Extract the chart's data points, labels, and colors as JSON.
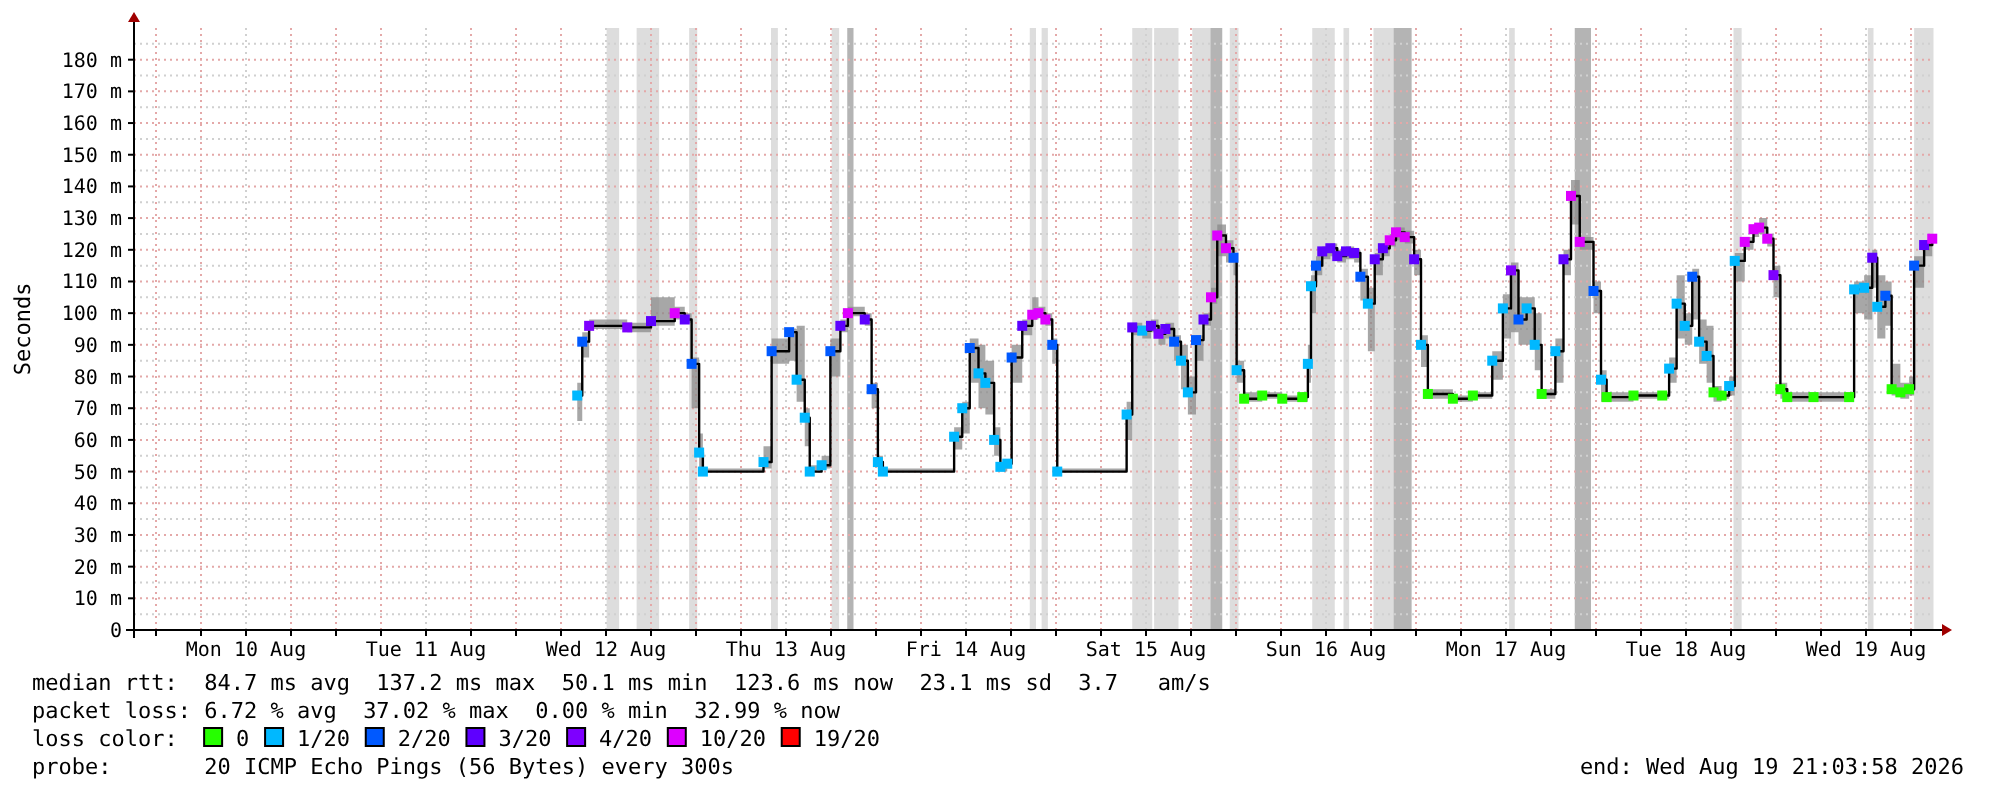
{
  "chart_data": {
    "type": "step",
    "ylabel": "Seconds",
    "legend_title": "loss color:",
    "legend": "bottom",
    "grid": true,
    "xlim": [
      "2026-08-09T21:04",
      "2026-08-19T21:04"
    ],
    "ylim": [
      0,
      190
    ],
    "xticks": [
      {
        "value": "2026-08-10T00:00",
        "label": null
      },
      {
        "value": "2026-08-10T06:00",
        "label": null
      },
      {
        "value": "2026-08-10T12:00",
        "label": "Mon 10 Aug"
      },
      {
        "value": "2026-08-10T18:00",
        "label": null
      },
      {
        "value": "2026-08-11T00:00",
        "label": null
      },
      {
        "value": "2026-08-11T06:00",
        "label": null
      },
      {
        "value": "2026-08-11T12:00",
        "label": "Tue 11 Aug"
      },
      {
        "value": "2026-08-11T18:00",
        "label": null
      },
      {
        "value": "2026-08-12T00:00",
        "label": null
      },
      {
        "value": "2026-08-12T06:00",
        "label": null
      },
      {
        "value": "2026-08-12T12:00",
        "label": "Wed 12 Aug"
      },
      {
        "value": "2026-08-12T18:00",
        "label": null
      },
      {
        "value": "2026-08-13T00:00",
        "label": null
      },
      {
        "value": "2026-08-13T06:00",
        "label": null
      },
      {
        "value": "2026-08-13T12:00",
        "label": "Thu 13 Aug"
      },
      {
        "value": "2026-08-13T18:00",
        "label": null
      },
      {
        "value": "2026-08-14T00:00",
        "label": null
      },
      {
        "value": "2026-08-14T06:00",
        "label": null
      },
      {
        "value": "2026-08-14T12:00",
        "label": "Fri 14 Aug"
      },
      {
        "value": "2026-08-14T18:00",
        "label": null
      },
      {
        "value": "2026-08-15T00:00",
        "label": null
      },
      {
        "value": "2026-08-15T06:00",
        "label": null
      },
      {
        "value": "2026-08-15T12:00",
        "label": "Sat 15 Aug"
      },
      {
        "value": "2026-08-15T18:00",
        "label": null
      },
      {
        "value": "2026-08-16T00:00",
        "label": null
      },
      {
        "value": "2026-08-16T06:00",
        "label": null
      },
      {
        "value": "2026-08-16T12:00",
        "label": "Sun 16 Aug"
      },
      {
        "value": "2026-08-16T18:00",
        "label": null
      },
      {
        "value": "2026-08-17T00:00",
        "label": null
      },
      {
        "value": "2026-08-17T06:00",
        "label": null
      },
      {
        "value": "2026-08-17T12:00",
        "label": "Mon 17 Aug"
      },
      {
        "value": "2026-08-17T18:00",
        "label": null
      },
      {
        "value": "2026-08-18T00:00",
        "label": null
      },
      {
        "value": "2026-08-18T06:00",
        "label": null
      },
      {
        "value": "2026-08-18T12:00",
        "label": "Tue 18 Aug"
      },
      {
        "value": "2026-08-18T18:00",
        "label": null
      },
      {
        "value": "2026-08-19T00:00",
        "label": null
      },
      {
        "value": "2026-08-19T06:00",
        "label": null
      },
      {
        "value": "2026-08-19T12:00",
        "label": "Wed 19 Aug"
      },
      {
        "value": "2026-08-19T18:00",
        "label": null
      }
    ],
    "yticks": [
      {
        "value": 0,
        "label": "0"
      },
      {
        "value": 5,
        "label": null
      },
      {
        "value": 10,
        "label": "10 m"
      },
      {
        "value": 15,
        "label": null
      },
      {
        "value": 20,
        "label": "20 m"
      },
      {
        "value": 25,
        "label": null
      },
      {
        "value": 30,
        "label": "30 m"
      },
      {
        "value": 35,
        "label": null
      },
      {
        "value": 40,
        "label": "40 m"
      },
      {
        "value": 45,
        "label": null
      },
      {
        "value": 50,
        "label": "50 m"
      },
      {
        "value": 55,
        "label": null
      },
      {
        "value": 60,
        "label": "60 m"
      },
      {
        "value": 65,
        "label": null
      },
      {
        "value": 70,
        "label": "70 m"
      },
      {
        "value": 75,
        "label": null
      },
      {
        "value": 80,
        "label": "80 m"
      },
      {
        "value": 85,
        "label": null
      },
      {
        "value": 90,
        "label": "90 m"
      },
      {
        "value": 95,
        "label": null
      },
      {
        "value": 100,
        "label": "100 m"
      },
      {
        "value": 105,
        "label": null
      },
      {
        "value": 110,
        "label": "110 m"
      },
      {
        "value": 115,
        "label": null
      },
      {
        "value": 120,
        "label": "120 m"
      },
      {
        "value": 125,
        "label": null
      },
      {
        "value": 130,
        "label": "130 m"
      },
      {
        "value": 135,
        "label": null
      },
      {
        "value": 140,
        "label": "140 m"
      },
      {
        "value": 145,
        "label": null
      },
      {
        "value": 150,
        "label": "150 m"
      },
      {
        "value": 155,
        "label": null
      },
      {
        "value": 160,
        "label": "160 m"
      },
      {
        "value": 165,
        "label": null
      },
      {
        "value": 170,
        "label": "170 m"
      },
      {
        "value": 175,
        "label": null
      },
      {
        "value": 180,
        "label": "180 m"
      },
      {
        "value": 185,
        "label": null
      }
    ],
    "x": [
      "2026-08-12T08:10",
      "2026-08-12T08:50",
      "2026-08-12T09:45",
      "2026-08-12T14:50",
      "2026-08-12T18:00",
      "2026-08-12T21:10",
      "2026-08-12T22:30",
      "2026-08-12T23:25",
      "2026-08-13T00:25",
      "2026-08-13T00:55",
      "2026-08-13T09:00",
      "2026-08-13T10:05",
      "2026-08-13T12:25",
      "2026-08-13T13:25",
      "2026-08-13T14:30",
      "2026-08-13T15:10",
      "2026-08-13T16:45",
      "2026-08-13T17:55",
      "2026-08-13T19:15",
      "2026-08-13T20:15",
      "2026-08-13T22:30",
      "2026-08-13T23:25",
      "2026-08-14T00:15",
      "2026-08-14T00:55",
      "2026-08-14T10:25",
      "2026-08-14T11:30",
      "2026-08-14T12:30",
      "2026-08-14T13:40",
      "2026-08-14T14:35",
      "2026-08-14T15:45",
      "2026-08-14T16:35",
      "2026-08-14T17:30",
      "2026-08-14T18:05",
      "2026-08-14T19:30",
      "2026-08-14T20:50",
      "2026-08-14T21:40",
      "2026-08-14T22:35",
      "2026-08-14T23:30",
      "2026-08-15T00:10",
      "2026-08-15T09:25",
      "2026-08-15T10:10",
      "2026-08-15T11:30",
      "2026-08-15T12:40",
      "2026-08-15T13:40",
      "2026-08-15T14:35",
      "2026-08-15T15:45",
      "2026-08-15T16:40",
      "2026-08-15T17:35",
      "2026-08-15T18:40",
      "2026-08-15T19:40",
      "2026-08-15T20:40",
      "2026-08-15T21:30",
      "2026-08-15T22:40",
      "2026-08-15T23:40",
      "2026-08-16T00:05",
      "2026-08-16T01:05",
      "2026-08-16T03:30",
      "2026-08-16T06:10",
      "2026-08-16T08:50",
      "2026-08-16T09:35",
      "2026-08-16T10:00",
      "2026-08-16T10:40",
      "2026-08-16T11:30",
      "2026-08-16T12:35",
      "2026-08-16T13:30",
      "2026-08-16T14:40",
      "2026-08-16T15:45",
      "2026-08-16T16:35",
      "2026-08-16T17:35",
      "2026-08-16T18:30",
      "2026-08-16T19:35",
      "2026-08-16T20:30",
      "2026-08-16T21:20",
      "2026-08-16T22:30",
      "2026-08-16T23:45",
      "2026-08-17T00:40",
      "2026-08-17T01:35",
      "2026-08-17T04:55",
      "2026-08-17T07:35",
      "2026-08-17T10:10",
      "2026-08-17T11:35",
      "2026-08-17T12:40",
      "2026-08-17T13:40",
      "2026-08-17T14:45",
      "2026-08-17T15:50",
      "2026-08-17T16:45",
      "2026-08-17T18:35",
      "2026-08-17T19:40",
      "2026-08-17T20:40",
      "2026-08-17T21:50",
      "2026-08-17T23:40",
      "2026-08-18T00:40",
      "2026-08-18T01:25",
      "2026-08-18T05:00",
      "2026-08-18T08:50",
      "2026-08-18T09:45",
      "2026-08-18T10:45",
      "2026-08-18T11:50",
      "2026-08-18T12:50",
      "2026-08-18T13:45",
      "2026-08-18T14:45",
      "2026-08-18T15:40",
      "2026-08-18T16:45",
      "2026-08-18T17:45",
      "2026-08-18T18:30",
      "2026-08-18T19:50",
      "2026-08-18T21:00",
      "2026-08-18T21:45",
      "2026-08-18T22:50",
      "2026-08-18T23:40",
      "2026-08-19T00:35",
      "2026-08-19T01:30",
      "2026-08-19T05:00",
      "2026-08-19T09:45",
      "2026-08-19T10:25",
      "2026-08-19T11:45",
      "2026-08-19T12:50",
      "2026-08-19T13:30",
      "2026-08-19T14:35",
      "2026-08-19T15:25",
      "2026-08-19T16:35",
      "2026-08-19T17:45",
      "2026-08-19T18:25",
      "2026-08-19T19:45",
      "2026-08-19T20:50"
    ],
    "series": [
      {
        "color": "#000000",
        "values": [
          74,
          91,
          96,
          95.5,
          97.5,
          100,
          98,
          84,
          56,
          50,
          53,
          88,
          94,
          79,
          67,
          50,
          52,
          88,
          96,
          100,
          98,
          76,
          53,
          50,
          61,
          70,
          89,
          81,
          78,
          60,
          51.5,
          52.5,
          86,
          96,
          99.5,
          100,
          98,
          90,
          50,
          68,
          95.5,
          94.5,
          96,
          93.5,
          95,
          91,
          85,
          75,
          91.5,
          98,
          105,
          124.5,
          120.5,
          117.5,
          82,
          73,
          74,
          73,
          73.5,
          84,
          108.5,
          115,
          119.5,
          120.5,
          118,
          119.5,
          119,
          111.5,
          103,
          117,
          120.5,
          123,
          125.5,
          124,
          117,
          90,
          74.5,
          73,
          74,
          85,
          101.5,
          113.5,
          98,
          101.5,
          90,
          74.5,
          88,
          117,
          137,
          122.5,
          107,
          79,
          73.5,
          74,
          74,
          82.5,
          103,
          96,
          111.5,
          91,
          86.5,
          75,
          74,
          77,
          116.5,
          122.5,
          126.5,
          127,
          123.5,
          112,
          76,
          73.5,
          73.5,
          73.5,
          107.5,
          108,
          117.5,
          102,
          105.5,
          76,
          75,
          76,
          115,
          121.5,
          123.5
        ],
        "lower": [
          66,
          86,
          95,
          94,
          96,
          98,
          97,
          70,
          50,
          50,
          51,
          84,
          85,
          72,
          58,
          50,
          51,
          80,
          94,
          99,
          96,
          70,
          51,
          50,
          57,
          62,
          78,
          70,
          68,
          55,
          50,
          51,
          78,
          93,
          98,
          99,
          96,
          84,
          50,
          60,
          93,
          92,
          94,
          90,
          92,
          85,
          76,
          68,
          85,
          96,
          103,
          118,
          116,
          112,
          78,
          72,
          73,
          72,
          72,
          78,
          100,
          112,
          117,
          118,
          116,
          117,
          116,
          104,
          88,
          112,
          118,
          121,
          123,
          122,
          112,
          83,
          73,
          72,
          73,
          79,
          92,
          94,
          90,
          90,
          82,
          73,
          78,
          112,
          128,
          120,
          100,
          72,
          72,
          73,
          73,
          78,
          92,
          90,
          98,
          84,
          78,
          72,
          73,
          74,
          110,
          120,
          124,
          125,
          121,
          105,
          73,
          72,
          72,
          72,
          100,
          98,
          108,
          92,
          96,
          74,
          73,
          74,
          108,
          118,
          121
        ],
        "upper": [
          78,
          94,
          98,
          97,
          105,
          102,
          100,
          86,
          62,
          51,
          58,
          92,
          95,
          96,
          70,
          52,
          55,
          92,
          98,
          102,
          100,
          78,
          55,
          51,
          64,
          72,
          92,
          90,
          85,
          64,
          53,
          54,
          90,
          98,
          105,
          102,
          100,
          92,
          51,
          72,
          97,
          96,
          98,
          96,
          97,
          93,
          90,
          80,
          93,
          100,
          108,
          128,
          123,
          119,
          85,
          75,
          75,
          74,
          75,
          90,
          112,
          118,
          121,
          122,
          120,
          121,
          120,
          114,
          108,
          119,
          122,
          125,
          127,
          126,
          120,
          93,
          76,
          74,
          75,
          88,
          106,
          116,
          105,
          105,
          100,
          76,
          92,
          120,
          142,
          124,
          110,
          82,
          75,
          75,
          75,
          86,
          112,
          100,
          114,
          98,
          96,
          77,
          75,
          80,
          119,
          124,
          128,
          130,
          125,
          115,
          78,
          75,
          75,
          75,
          110,
          112,
          120,
          112,
          110,
          84,
          78,
          80,
          118,
          123,
          125
        ]
      },
      {
        "type": "scatter",
        "marker": "square",
        "name": "0",
        "color": "#26ff00",
        "x": [
          "2026-08-16T01:05",
          "2026-08-16T03:30",
          "2026-08-16T06:10",
          "2026-08-16T08:50",
          "2026-08-17T01:35",
          "2026-08-17T04:55",
          "2026-08-17T07:35",
          "2026-08-17T16:45",
          "2026-08-18T01:25",
          "2026-08-18T05:00",
          "2026-08-18T08:50",
          "2026-08-18T15:40",
          "2026-08-18T16:45",
          "2026-08-19T00:35",
          "2026-08-19T01:30",
          "2026-08-19T05:00",
          "2026-08-19T09:45",
          "2026-08-19T15:25",
          "2026-08-19T16:35",
          "2026-08-19T17:45"
        ],
        "values": [
          73,
          74,
          73,
          73.5,
          74.5,
          73,
          74,
          74.5,
          73.5,
          74,
          74,
          75,
          74,
          76,
          73.5,
          73.5,
          73.5,
          76,
          75,
          76
        ]
      },
      {
        "type": "scatter",
        "marker": "square",
        "name": "1/20",
        "color": "#00b8ff",
        "x": [
          "2026-08-12T08:10",
          "2026-08-13T00:25",
          "2026-08-13T00:55",
          "2026-08-13T09:00",
          "2026-08-13T13:25",
          "2026-08-13T14:30",
          "2026-08-13T15:10",
          "2026-08-13T16:45",
          "2026-08-14T00:15",
          "2026-08-14T00:55",
          "2026-08-14T10:25",
          "2026-08-14T11:30",
          "2026-08-14T13:40",
          "2026-08-14T14:35",
          "2026-08-14T15:45",
          "2026-08-14T16:35",
          "2026-08-14T17:30",
          "2026-08-15T00:10",
          "2026-08-15T09:25",
          "2026-08-15T11:30",
          "2026-08-15T16:40",
          "2026-08-15T17:35",
          "2026-08-16T00:05",
          "2026-08-16T09:35",
          "2026-08-16T10:00",
          "2026-08-16T17:35",
          "2026-08-17T00:40",
          "2026-08-17T10:10",
          "2026-08-17T11:35",
          "2026-08-17T14:45",
          "2026-08-17T15:50",
          "2026-08-17T18:35",
          "2026-08-18T00:40",
          "2026-08-18T09:45",
          "2026-08-18T10:45",
          "2026-08-18T11:50",
          "2026-08-18T13:45",
          "2026-08-18T14:45",
          "2026-08-18T17:45",
          "2026-08-18T18:30",
          "2026-08-19T10:25",
          "2026-08-19T11:45",
          "2026-08-19T13:30"
        ],
        "values": [
          74,
          56,
          50,
          53,
          79,
          67,
          50,
          52,
          53,
          50,
          61,
          70,
          81,
          78,
          60,
          51.5,
          52.5,
          50,
          68,
          94.5,
          85,
          75,
          82,
          84,
          108.5,
          103,
          90,
          85,
          101.5,
          101.5,
          90,
          88,
          79,
          82.5,
          103,
          96,
          91,
          86.5,
          77,
          116.5,
          107.5,
          108,
          102
        ]
      },
      {
        "type": "scatter",
        "marker": "square",
        "name": "2/20",
        "color": "#0059ff",
        "x": [
          "2026-08-12T08:50",
          "2026-08-12T23:25",
          "2026-08-13T10:05",
          "2026-08-13T12:25",
          "2026-08-13T17:55",
          "2026-08-13T23:25",
          "2026-08-14T12:30",
          "2026-08-14T18:05",
          "2026-08-14T23:30",
          "2026-08-15T15:45",
          "2026-08-15T18:40",
          "2026-08-15T23:40",
          "2026-08-16T10:40",
          "2026-08-16T16:35",
          "2026-08-17T13:40",
          "2026-08-17T23:40",
          "2026-08-18T12:50",
          "2026-08-19T14:35",
          "2026-08-19T18:25"
        ],
        "values": [
          91,
          84,
          88,
          94,
          88,
          76,
          89,
          86,
          90,
          91,
          91.5,
          117.5,
          115,
          111.5,
          98,
          107,
          111.5,
          105.5,
          115
        ]
      },
      {
        "type": "scatter",
        "marker": "square",
        "name": "3/20",
        "color": "#5e00ff",
        "x": [
          "2026-08-12T18:00",
          "2026-08-12T22:30",
          "2026-08-13T19:15",
          "2026-08-13T22:30",
          "2026-08-14T19:30",
          "2026-08-15T10:10",
          "2026-08-15T12:40",
          "2026-08-15T14:35",
          "2026-08-15T19:40",
          "2026-08-16T11:30",
          "2026-08-16T12:35",
          "2026-08-16T13:30",
          "2026-08-16T14:40",
          "2026-08-16T15:45",
          "2026-08-16T18:30",
          "2026-08-16T19:35",
          "2026-08-16T23:45",
          "2026-08-17T19:40",
          "2026-08-19T12:50",
          "2026-08-19T19:45"
        ],
        "values": [
          97.5,
          98,
          96,
          98,
          96,
          95.5,
          96,
          95,
          98,
          119.5,
          120.5,
          118,
          119.5,
          119,
          117,
          120.5,
          117,
          117,
          117.5,
          121.5
        ]
      },
      {
        "type": "scatter",
        "marker": "square",
        "name": "4/20",
        "color": "#7e00ff",
        "x": [
          "2026-08-12T09:45",
          "2026-08-12T14:50",
          "2026-08-15T13:40",
          "2026-08-17T12:40",
          "2026-08-18T23:40"
        ],
        "values": [
          96,
          95.5,
          93.5,
          113.5,
          112
        ]
      },
      {
        "type": "scatter",
        "marker": "square",
        "name": "10/20",
        "color": "#dd00ff",
        "x": [
          "2026-08-12T21:10",
          "2026-08-13T20:15",
          "2026-08-14T20:50",
          "2026-08-14T21:40",
          "2026-08-14T22:35",
          "2026-08-15T20:40",
          "2026-08-15T21:30",
          "2026-08-15T22:40",
          "2026-08-16T20:30",
          "2026-08-16T21:20",
          "2026-08-16T22:30",
          "2026-08-17T20:40",
          "2026-08-17T21:50",
          "2026-08-18T19:50",
          "2026-08-18T21:00",
          "2026-08-18T21:45",
          "2026-08-18T22:50",
          "2026-08-19T20:50"
        ],
        "values": [
          100,
          100,
          99.5,
          100,
          98,
          105,
          124.5,
          120.5,
          123,
          125.5,
          124,
          137,
          122.5,
          122.5,
          126.5,
          127,
          123.5,
          123.5
        ]
      },
      {
        "type": "scatter",
        "marker": "square",
        "name": "19/20",
        "color": "#ff0000",
        "values": [
          null,
          null,
          null,
          null,
          null,
          null,
          null,
          null,
          null,
          null,
          null,
          null,
          null,
          null,
          null,
          null,
          null,
          null,
          null,
          null,
          null,
          null,
          null,
          null,
          null,
          null,
          null,
          null,
          null,
          null,
          null,
          null,
          null,
          null,
          null,
          null,
          null,
          null,
          null,
          null,
          null,
          null,
          null,
          null,
          null,
          null,
          null,
          null,
          null,
          null,
          null,
          null,
          null,
          null,
          null,
          null,
          null,
          null,
          null,
          null,
          null,
          null,
          null,
          null,
          null,
          null,
          null,
          null,
          null,
          null,
          null,
          null,
          null,
          null,
          null,
          null,
          null,
          null,
          null,
          null,
          null,
          null,
          null,
          null,
          null,
          null,
          null,
          null,
          null,
          null,
          null,
          null,
          null,
          null,
          null,
          null,
          null,
          null,
          null,
          null,
          null,
          null,
          null,
          null,
          null,
          null,
          null,
          null,
          null,
          null,
          null,
          null,
          null,
          null,
          null,
          null,
          null,
          null,
          null,
          null,
          null,
          null,
          null,
          null,
          null
        ]
      }
    ],
    "bands": [
      {
        "axis": "x",
        "from": "2026-08-12T12:05",
        "to": "2026-08-12T13:45",
        "color": "#dddddd"
      },
      {
        "axis": "x",
        "from": "2026-08-12T16:05",
        "to": "2026-08-12T19:05",
        "color": "#dddddd"
      },
      {
        "axis": "x",
        "from": "2026-08-12T23:05",
        "to": "2026-08-13T00:10",
        "color": "#dddddd"
      },
      {
        "axis": "x",
        "from": "2026-08-13T10:00",
        "to": "2026-08-13T10:55",
        "color": "#dddddd"
      },
      {
        "axis": "x",
        "from": "2026-08-13T18:05",
        "to": "2026-08-13T19:05",
        "color": "#dddddd"
      },
      {
        "axis": "x",
        "from": "2026-08-13T20:10",
        "to": "2026-08-13T21:00",
        "color": "#b4b4b4"
      },
      {
        "axis": "x",
        "from": "2026-08-14T20:30",
        "to": "2026-08-14T21:20",
        "color": "#dddddd"
      },
      {
        "axis": "x",
        "from": "2026-08-14T22:05",
        "to": "2026-08-14T22:55",
        "color": "#dddddd"
      },
      {
        "axis": "x",
        "from": "2026-08-15T10:10",
        "to": "2026-08-15T12:50",
        "color": "#dddddd"
      },
      {
        "axis": "x",
        "from": "2026-08-15T13:05",
        "to": "2026-08-15T16:20",
        "color": "#dddddd"
      },
      {
        "axis": "x",
        "from": "2026-08-15T18:10",
        "to": "2026-08-15T20:35",
        "color": "#dddddd"
      },
      {
        "axis": "x",
        "from": "2026-08-15T20:35",
        "to": "2026-08-15T22:10",
        "color": "#b4b4b4"
      },
      {
        "axis": "x",
        "from": "2026-08-15T23:10",
        "to": "2026-08-16T00:20",
        "color": "#dddddd"
      },
      {
        "axis": "x",
        "from": "2026-08-16T10:10",
        "to": "2026-08-16T13:10",
        "color": "#dddddd"
      },
      {
        "axis": "x",
        "from": "2026-08-16T14:20",
        "to": "2026-08-16T15:05",
        "color": "#dddddd"
      },
      {
        "axis": "x",
        "from": "2026-08-16T18:20",
        "to": "2026-08-16T21:00",
        "color": "#dddddd"
      },
      {
        "axis": "x",
        "from": "2026-08-16T21:00",
        "to": "2026-08-16T23:25",
        "color": "#b4b4b4"
      },
      {
        "axis": "x",
        "from": "2026-08-17T12:25",
        "to": "2026-08-17T13:10",
        "color": "#dddddd"
      },
      {
        "axis": "x",
        "from": "2026-08-17T21:10",
        "to": "2026-08-17T23:20",
        "color": "#b4b4b4"
      },
      {
        "axis": "x",
        "from": "2026-08-18T18:20",
        "to": "2026-08-18T19:25",
        "color": "#dddddd"
      },
      {
        "axis": "x",
        "from": "2026-08-19T12:15",
        "to": "2026-08-19T13:00",
        "color": "#dddddd"
      },
      {
        "axis": "x",
        "from": "2026-08-19T18:25",
        "to": "2026-08-19T21:00",
        "color": "#dddddd"
      }
    ],
    "annotations": [
      "median rtt:  84.7 ms avg  137.2 ms max  50.1 ms min  123.6 ms now  23.1 ms sd  3.7   am/s",
      "packet loss: 6.72 % avg  37.02 % max  0.00 % min  32.99 % now",
      "probe:       20 ICMP Echo Pings (56 Bytes) every 300s",
      "end: Wed Aug 19 21:03:58 2026"
    ]
  }
}
